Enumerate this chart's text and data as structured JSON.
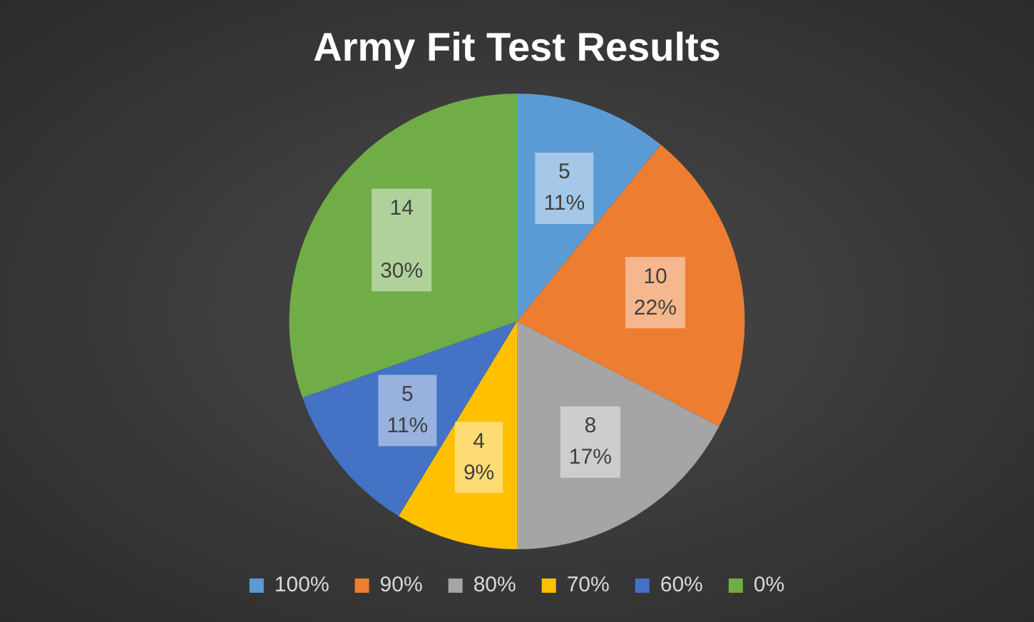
{
  "chart_data": {
    "type": "pie",
    "title": "Army Fit Test Results",
    "categories": [
      "100%",
      "90%",
      "80%",
      "70%",
      "60%",
      "0%"
    ],
    "values": [
      5,
      10,
      8,
      4,
      5,
      14
    ],
    "colors": [
      "#5b9bd5",
      "#ed7d31",
      "#a5a5a5",
      "#ffc000",
      "#4472c4",
      "#70ad47"
    ],
    "value_labels": [
      "5\n11%",
      "10\n22%",
      "8\n17%",
      "4\n9%",
      "5\n11%",
      "14\n\n30%"
    ],
    "legend": "bottom"
  }
}
